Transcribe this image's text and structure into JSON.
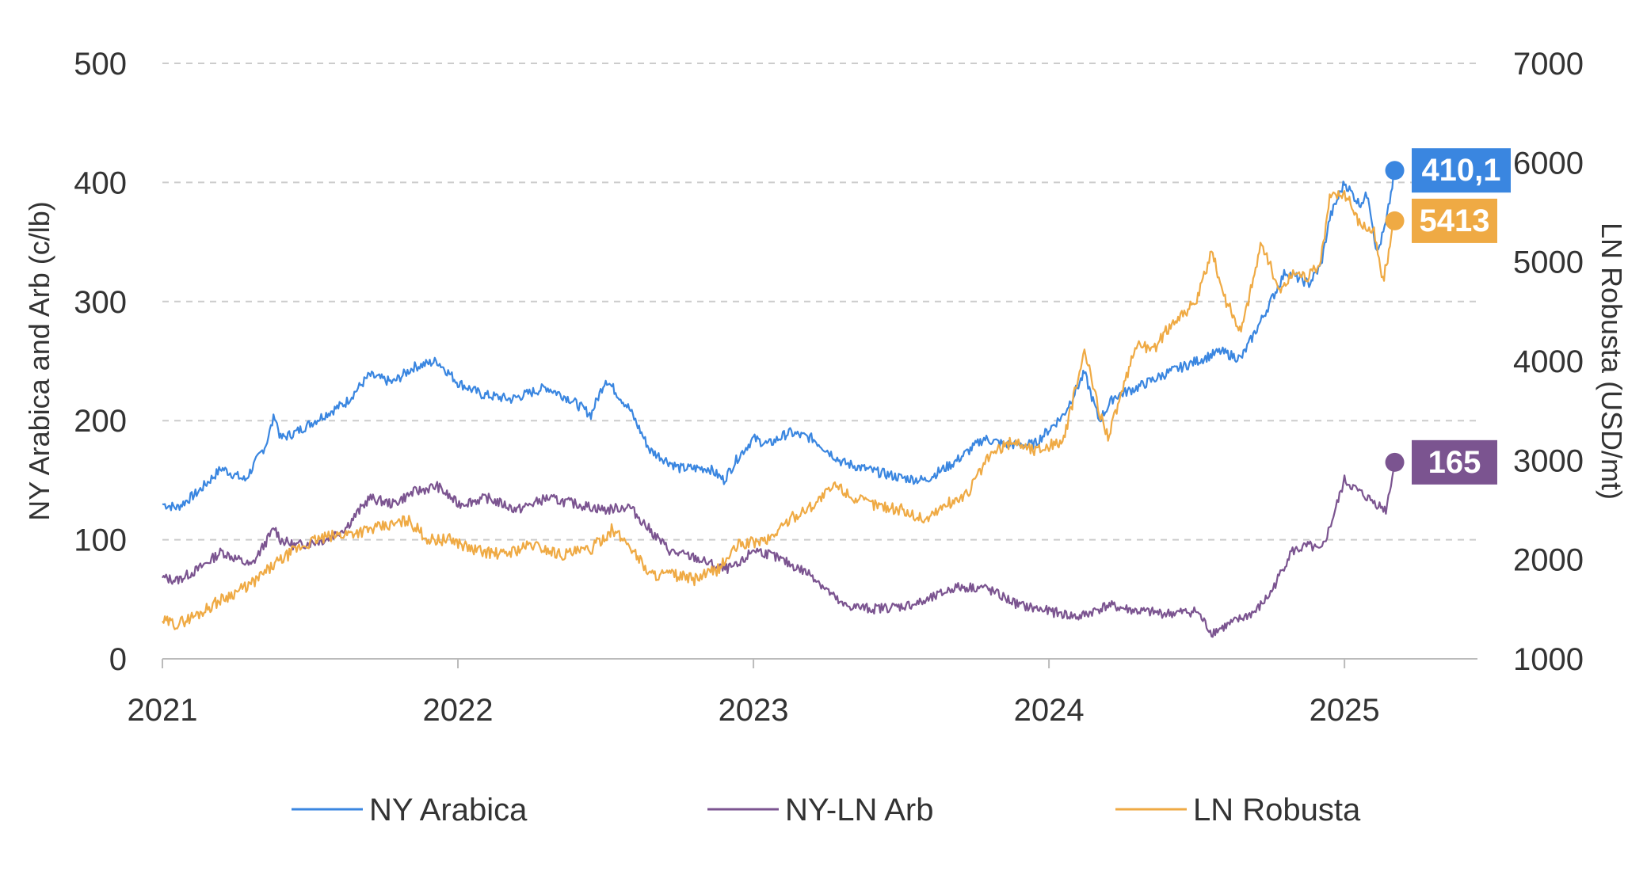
{
  "chart_data": {
    "type": "line",
    "y_left": {
      "label": "NY Arabica and Arb (c/lb)",
      "ylim": [
        0,
        500
      ],
      "ticks": [
        "0",
        "100",
        "200",
        "300",
        "400",
        "500"
      ]
    },
    "y_right": {
      "label": "LN Robusta (USD/mt)",
      "ylim": [
        1000,
        7000
      ],
      "ticks": [
        "1000",
        "2000",
        "3000",
        "4000",
        "5000",
        "6000",
        "7000"
      ]
    },
    "x_axis": {
      "xlim": [
        2021.0,
        2025.45
      ],
      "ticks": [
        "2021",
        "2022",
        "2023",
        "2024",
        "2025"
      ]
    },
    "grid": "horizontal dashed",
    "legend_position": "bottom",
    "series": [
      {
        "name": "NY Arabica",
        "axis": "left",
        "color": "#3a86e0",
        "end_label": "410,1",
        "x": [
          2021.0,
          2021.05,
          2021.12,
          2021.2,
          2021.28,
          2021.35,
          2021.38,
          2021.4,
          2021.45,
          2021.55,
          2021.62,
          2021.7,
          2021.78,
          2021.85,
          2021.93,
          2022.0,
          2022.08,
          2022.18,
          2022.3,
          2022.38,
          2022.45,
          2022.5,
          2022.58,
          2022.65,
          2022.75,
          2022.85,
          2022.9,
          2022.95,
          2023.0,
          2023.05,
          2023.12,
          2023.2,
          2023.3,
          2023.4,
          2023.5,
          2023.58,
          2023.68,
          2023.78,
          2023.85,
          2023.95,
          2024.05,
          2024.12,
          2024.17,
          2024.22,
          2024.3,
          2024.4,
          2024.5,
          2024.58,
          2024.65,
          2024.72,
          2024.8,
          2024.88,
          2024.92,
          2024.95,
          2025.0,
          2025.05,
          2025.08,
          2025.11,
          2025.14,
          2025.17
        ],
        "y": [
          130,
          127,
          140,
          160,
          150,
          180,
          205,
          185,
          190,
          205,
          215,
          238,
          232,
          245,
          250,
          232,
          222,
          218,
          228,
          218,
          205,
          235,
          210,
          175,
          160,
          160,
          150,
          170,
          185,
          180,
          190,
          185,
          165,
          158,
          152,
          150,
          165,
          185,
          180,
          180,
          205,
          240,
          200,
          220,
          228,
          240,
          250,
          258,
          252,
          285,
          325,
          315,
          330,
          370,
          400,
          382,
          390,
          340,
          365,
          410.1
        ]
      },
      {
        "name": "NY-LN Arb",
        "axis": "left",
        "color": "#7b5490",
        "end_label": "165",
        "x": [
          2021.0,
          2021.05,
          2021.12,
          2021.2,
          2021.3,
          2021.38,
          2021.4,
          2021.45,
          2021.55,
          2021.62,
          2021.7,
          2021.78,
          2021.85,
          2021.93,
          2022.0,
          2022.1,
          2022.2,
          2022.3,
          2022.4,
          2022.5,
          2022.58,
          2022.65,
          2022.72,
          2022.8,
          2022.85,
          2022.9,
          2022.95,
          2023.0,
          2023.05,
          2023.12,
          2023.2,
          2023.3,
          2023.4,
          2023.5,
          2023.58,
          2023.68,
          2023.78,
          2023.82,
          2023.9,
          2024.0,
          2024.1,
          2024.2,
          2024.3,
          2024.4,
          2024.5,
          2024.55,
          2024.62,
          2024.7,
          2024.75,
          2024.82,
          2024.88,
          2024.92,
          2024.95,
          2025.0,
          2025.05,
          2025.08,
          2025.11,
          2025.14,
          2025.17
        ],
        "y": [
          68,
          66,
          75,
          90,
          78,
          110,
          100,
          95,
          100,
          110,
          135,
          130,
          140,
          145,
          130,
          135,
          125,
          135,
          130,
          125,
          128,
          108,
          90,
          85,
          80,
          75,
          78,
          92,
          88,
          80,
          70,
          45,
          42,
          44,
          48,
          60,
          60,
          55,
          45,
          40,
          35,
          45,
          40,
          38,
          40,
          22,
          30,
          40,
          55,
          90,
          95,
          90,
          110,
          150,
          140,
          135,
          130,
          125,
          165
        ]
      },
      {
        "name": "LN Robusta",
        "axis": "right",
        "color": "#efaa44",
        "end_label": "5413",
        "x": [
          2021.0,
          2021.05,
          2021.12,
          2021.2,
          2021.3,
          2021.38,
          2021.45,
          2021.52,
          2021.6,
          2021.7,
          2021.78,
          2021.83,
          2021.9,
          2021.98,
          2022.05,
          2022.15,
          2022.25,
          2022.35,
          2022.45,
          2022.52,
          2022.58,
          2022.65,
          2022.72,
          2022.8,
          2022.88,
          2022.95,
          2023.05,
          2023.12,
          2023.2,
          2023.28,
          2023.35,
          2023.42,
          2023.5,
          2023.58,
          2023.65,
          2023.72,
          2023.8,
          2023.88,
          2023.95,
          2024.05,
          2024.12,
          2024.17,
          2024.2,
          2024.25,
          2024.3,
          2024.35,
          2024.42,
          2024.5,
          2024.55,
          2024.6,
          2024.65,
          2024.72,
          2024.78,
          2024.83,
          2024.88,
          2024.92,
          2024.95,
          2025.0,
          2025.05,
          2025.1,
          2025.13,
          2025.17
        ],
        "y": [
          1380,
          1350,
          1450,
          1600,
          1750,
          1950,
          2100,
          2200,
          2250,
          2300,
          2350,
          2400,
          2200,
          2200,
          2100,
          2050,
          2150,
          2050,
          2100,
          2300,
          2150,
          1850,
          1850,
          1800,
          1900,
          2150,
          2200,
          2400,
          2550,
          2750,
          2600,
          2550,
          2500,
          2400,
          2550,
          2650,
          3050,
          3200,
          3100,
          3200,
          4100,
          3500,
          3250,
          3700,
          4200,
          4100,
          4400,
          4600,
          5100,
          4600,
          4300,
          5200,
          4700,
          4900,
          4850,
          5000,
          5650,
          5700,
          5400,
          5300,
          4800,
          5413
        ]
      }
    ]
  },
  "legend": {
    "arabica": "NY Arabica",
    "arb": "NY-LN Arb",
    "robusta": "LN Robusta"
  }
}
